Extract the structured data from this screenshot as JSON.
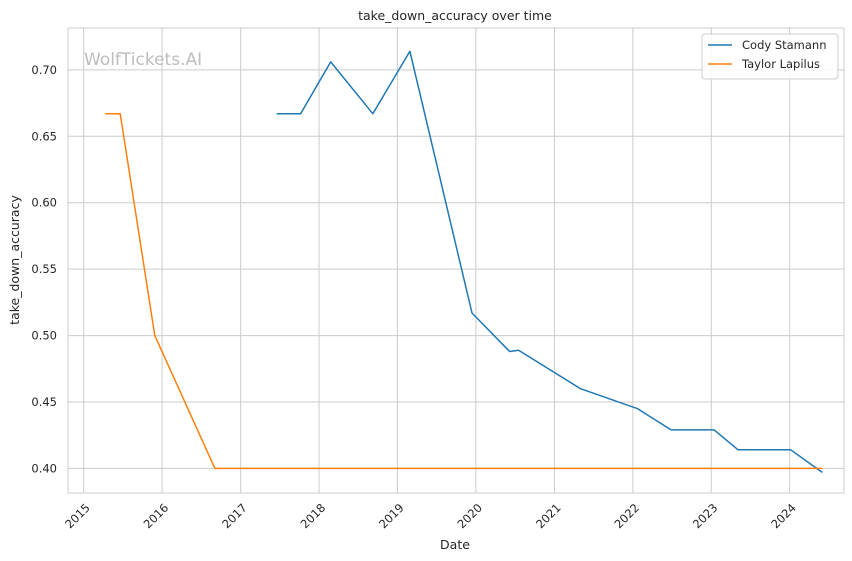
{
  "chart_data": {
    "type": "line",
    "title": "take_down_accuracy over time",
    "xlabel": "Date",
    "ylabel": "take_down_accuracy",
    "watermark": "WolfTickets.AI",
    "x_ticks": [
      "2015",
      "2016",
      "2017",
      "2018",
      "2019",
      "2020",
      "2021",
      "2022",
      "2023",
      "2024"
    ],
    "y_ticks": [
      "0.40",
      "0.45",
      "0.50",
      "0.55",
      "0.60",
      "0.65",
      "0.70"
    ],
    "xlim": [
      "2014-10-20",
      "2024-09-10"
    ],
    "ylim": [
      0.3815,
      0.7315
    ],
    "grid": true,
    "legend_position": "top-right",
    "series": [
      {
        "name": "Cody Stamann",
        "color": "#1f77b4",
        "points": [
          [
            "2017-06-17",
            0.667
          ],
          [
            "2017-10-07",
            0.667
          ],
          [
            "2018-02-24",
            0.706
          ],
          [
            "2018-09-08",
            0.667
          ],
          [
            "2019-02-28",
            0.714
          ],
          [
            "2019-12-14",
            0.517
          ],
          [
            "2020-06-06",
            0.488
          ],
          [
            "2020-07-18",
            0.489
          ],
          [
            "2021-05-02",
            0.46
          ],
          [
            "2022-01-22",
            0.445
          ],
          [
            "2022-06-28",
            0.429
          ],
          [
            "2023-01-14",
            0.429
          ],
          [
            "2023-05-06",
            0.414
          ],
          [
            "2024-01-06",
            0.414
          ],
          [
            "2024-06-01",
            0.397
          ]
        ]
      },
      {
        "name": "Taylor Lapilus",
        "color": "#ff7f0e",
        "points": [
          [
            "2015-04-11",
            0.667
          ],
          [
            "2015-06-20",
            0.667
          ],
          [
            "2015-11-28",
            0.5
          ],
          [
            "2016-09-03",
            0.4
          ],
          [
            "2024-06-01",
            0.4
          ]
        ]
      }
    ]
  }
}
